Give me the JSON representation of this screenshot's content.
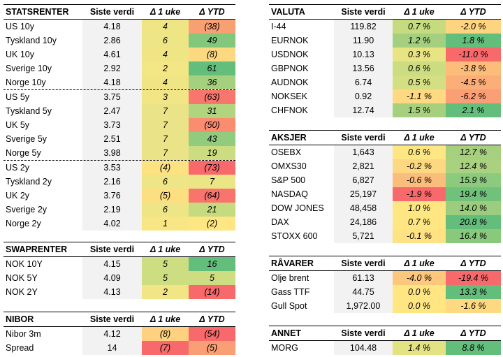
{
  "columns": {
    "value": "Siste verdi",
    "week": "Δ 1 uke",
    "ytd": "Δ YTD"
  },
  "tables": [
    {
      "id": "statsrenter",
      "title": "STATSRENTER",
      "groups": [
        [
          {
            "name": "US 10y",
            "value": "4.18",
            "week": "4",
            "week_color": "#f0e585",
            "ytd": "(38)",
            "ytd_color": "#f9a073"
          },
          {
            "name": "Tyskland 10y",
            "value": "2.86",
            "week": "6",
            "week_color": "#eee586",
            "ytd": "49",
            "ytd_color": "#82c77c"
          },
          {
            "name": "UK 10y",
            "value": "4.61",
            "week": "4",
            "week_color": "#f0e585",
            "ytd": "(8)",
            "ytd_color": "#fcd980"
          },
          {
            "name": "Sverige 10y",
            "value": "2.92",
            "week": "2",
            "week_color": "#f3e685",
            "ytd": "61",
            "ytd_color": "#63be7b"
          },
          {
            "name": "Norge 10y",
            "value": "4.18",
            "week": "4",
            "week_color": "#f0e585",
            "ytd": "36",
            "ytd_color": "#a5d07e"
          }
        ],
        [
          {
            "name": "US 5y",
            "value": "3.75",
            "week": "3",
            "week_color": "#f1e585",
            "ytd": "(63)",
            "ytd_color": "#f8766d"
          },
          {
            "name": "Tyskland 5y",
            "value": "2.47",
            "week": "7",
            "week_color": "#ebe387",
            "ytd": "31",
            "ytd_color": "#b1d47f"
          },
          {
            "name": "UK 5y",
            "value": "3.73",
            "week": "7",
            "week_color": "#ebe387",
            "ytd": "(50)",
            "ytd_color": "#fa8c70"
          },
          {
            "name": "Sverige 5y",
            "value": "2.51",
            "week": "7",
            "week_color": "#ebe387",
            "ytd": "43",
            "ytd_color": "#91cb7d"
          },
          {
            "name": "Norge 5y",
            "value": "3.98",
            "week": "7",
            "week_color": "#ebe387",
            "ytd": "19",
            "ytd_color": "#cbdc81"
          }
        ],
        [
          {
            "name": "US 2y",
            "value": "3.53",
            "week": "(4)",
            "week_color": "#fde282",
            "ytd": "(73)",
            "ytd_color": "#f8696b"
          },
          {
            "name": "Tyskland 2y",
            "value": "2.16",
            "week": "6",
            "week_color": "#eee586",
            "ytd": "7",
            "ytd_color": "#ebe586"
          },
          {
            "name": "UK 2y",
            "value": "3.76",
            "week": "(5)",
            "week_color": "#fddf82",
            "ytd": "(64)",
            "ytd_color": "#f8746d"
          },
          {
            "name": "Sverige 2y",
            "value": "2.19",
            "week": "6",
            "week_color": "#eee586",
            "ytd": "21",
            "ytd_color": "#c6da80"
          },
          {
            "name": "Norge 2y",
            "value": "4.02",
            "week": "1",
            "week_color": "#f8e684",
            "ytd": "(2)",
            "ytd_color": "#fee783"
          }
        ]
      ]
    },
    {
      "id": "swaprenter",
      "title": "SWAPRENTER",
      "groups": [
        [
          {
            "name": "NOK 10Y",
            "value": "4.15",
            "week": "5",
            "week_color": "#cddd82",
            "ytd": "16",
            "ytd_color": "#63be7b"
          },
          {
            "name": "NOK 5Y",
            "value": "4.09",
            "week": "5",
            "week_color": "#cddd82",
            "ytd": "5",
            "ytd_color": "#cddd82"
          },
          {
            "name": "NOK 2Y",
            "value": "4.13",
            "week": "2",
            "week_color": "#f1e585",
            "ytd": "(14)",
            "ytd_color": "#f8696b"
          }
        ]
      ]
    },
    {
      "id": "nibor",
      "title": "NIBOR",
      "groups": [
        [
          {
            "name": "Nibor 3m",
            "value": "4.12",
            "week": "(8)",
            "week_color": "#fdd17f",
            "ytd": "(54)",
            "ytd_color": "#f8696b"
          },
          {
            "name": "Spread",
            "value": "14",
            "week": "(7)",
            "week_color": "#f8696b",
            "ytd": "(5)",
            "ytd_color": "#fa9e75"
          }
        ]
      ]
    },
    {
      "id": "valuta",
      "title": "VALUTA",
      "groups": [
        [
          {
            "name": "I-44",
            "value": "119.82",
            "week": "0.7 %",
            "week_color": "#c6db80",
            "ytd": "-2.0 %",
            "ytd_color": "#fed480"
          },
          {
            "name": "EURNOK",
            "value": "11.90",
            "week": "1.2 %",
            "week_color": "#a3cf7e",
            "ytd": "1.8 %",
            "ytd_color": "#63be7b"
          },
          {
            "name": "USDNOK",
            "value": "10.13",
            "week": "0.3 %",
            "week_color": "#e9e483",
            "ytd": "-11.0 %",
            "ytd_color": "#f8696b"
          },
          {
            "name": "GBPNOK",
            "value": "13.56",
            "week": "0.6 %",
            "week_color": "#cbdc81",
            "ytd": "-3.8 %",
            "ytd_color": "#fcbd7b"
          },
          {
            "name": "AUDNOK",
            "value": "6.74",
            "week": "0.5 %",
            "week_color": "#d3df82",
            "ytd": "-4.5 %",
            "ytd_color": "#fbae78"
          },
          {
            "name": "NOKSEK",
            "value": "0.92",
            "week": "-1.1 %",
            "week_color": "#fed981",
            "ytd": "-6.2 %",
            "ytd_color": "#fa9e75"
          },
          {
            "name": "CHFNOK",
            "value": "12.74",
            "week": "1.5 %",
            "week_color": "#a6d07e",
            "ytd": "2.1 %",
            "ytd_color": "#63be7b"
          }
        ]
      ]
    },
    {
      "id": "aksjer",
      "title": "AKSJER",
      "groups": [
        [
          {
            "name": "OSEBX",
            "value": "1,643",
            "week": "0.6 %",
            "week_color": "#fee683",
            "ytd": "12.7 %",
            "ytd_color": "#a6d07e"
          },
          {
            "name": "OMXS30",
            "value": "2,821",
            "week": "-0.2 %",
            "week_color": "#fdd880",
            "ytd": "12.4 %",
            "ytd_color": "#a9d17f"
          },
          {
            "name": "S&P 500",
            "value": "6,827",
            "week": "-0.6 %",
            "week_color": "#fbbd7b",
            "ytd": "15.9 %",
            "ytd_color": "#8cca7d"
          },
          {
            "name": "NASDAQ",
            "value": "25,197",
            "week": "-1.9 %",
            "week_color": "#f8696b",
            "ytd": "19.4 %",
            "ytd_color": "#70c27b"
          },
          {
            "name": "DOW JONES",
            "value": "48,458",
            "week": "1.0 %",
            "week_color": "#fee683",
            "ytd": "14.0 %",
            "ytd_color": "#9ccd7e"
          },
          {
            "name": "DAX",
            "value": "24,186",
            "week": "0.7 %",
            "week_color": "#fee683",
            "ytd": "20.8 %",
            "ytd_color": "#63be7b"
          },
          {
            "name": "STOXX 600",
            "value": "5,721",
            "week": "-0.1 %",
            "week_color": "#fee283",
            "ytd": "16.4 %",
            "ytd_color": "#88c97c"
          }
        ]
      ]
    },
    {
      "id": "ravarer",
      "title": "RÅVARER",
      "groups": [
        [
          {
            "name": "Olje brent",
            "value": "61.13",
            "week": "-4.0 %",
            "week_color": "#fdc77d",
            "ytd": "-19.4 %",
            "ytd_color": "#f8696b"
          },
          {
            "name": "Gass TTF",
            "value": "44.75",
            "week": "0.0 %",
            "week_color": "#ffe683",
            "ytd": "13.3 %",
            "ytd_color": "#63be7b"
          },
          {
            "name": "Gull Spot",
            "value": "1,972.00",
            "week": "0.0 %",
            "week_color": "#ffe683",
            "ytd": "-1.6 %",
            "ytd_color": "#fed981"
          }
        ]
      ]
    },
    {
      "id": "annet",
      "title": "ANNET",
      "groups": [
        [
          {
            "name": "MORG",
            "value": "104.48",
            "week": "1.4 %",
            "week_color": "#e4e384",
            "ytd": "8.8 %",
            "ytd_color": "#63be7b"
          }
        ]
      ]
    }
  ]
}
